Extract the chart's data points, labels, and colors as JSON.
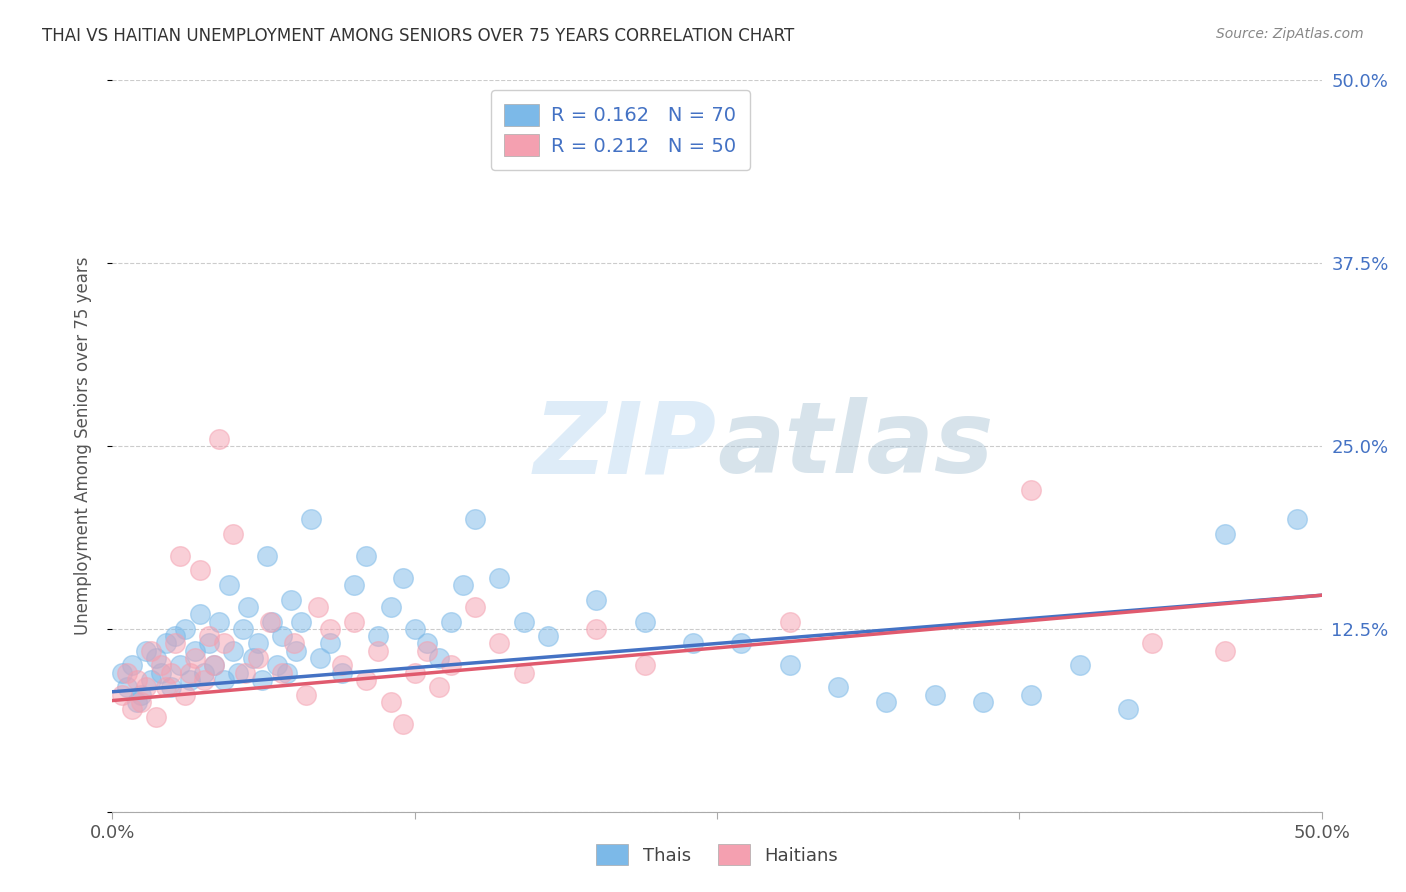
{
  "title": "THAI VS HAITIAN UNEMPLOYMENT AMONG SENIORS OVER 75 YEARS CORRELATION CHART",
  "source": "Source: ZipAtlas.com",
  "xlabel": "",
  "ylabel": "Unemployment Among Seniors over 75 years",
  "xlim": [
    0.0,
    0.5
  ],
  "ylim": [
    0.0,
    0.5
  ],
  "xticks": [
    0.0,
    0.125,
    0.25,
    0.375,
    0.5
  ],
  "yticks": [
    0.0,
    0.125,
    0.25,
    0.375,
    0.5
  ],
  "xtick_labels": [
    "0.0%",
    "",
    "",
    "",
    "50.0%"
  ],
  "ytick_labels": [
    "",
    "12.5%",
    "25.0%",
    "37.5%",
    "50.0%"
  ],
  "thai_color": "#7cb9e8",
  "haitian_color": "#f4a0b0",
  "thai_R": 0.162,
  "thai_N": 70,
  "haitian_R": 0.212,
  "haitian_N": 50,
  "background_color": "#ffffff",
  "grid_color": "#cccccc",
  "watermark_zip": "ZIP",
  "watermark_atlas": "atlas",
  "legend_label_thai": "Thais",
  "legend_label_haitian": "Haitians",
  "legend_R_color": "#4472c4",
  "tick_label_color": "#4472c4",
  "title_color": "#333333",
  "source_color": "#888888",
  "thai_scatter": [
    [
      0.004,
      0.095
    ],
    [
      0.006,
      0.085
    ],
    [
      0.008,
      0.1
    ],
    [
      0.01,
      0.075
    ],
    [
      0.012,
      0.08
    ],
    [
      0.014,
      0.11
    ],
    [
      0.016,
      0.09
    ],
    [
      0.018,
      0.105
    ],
    [
      0.02,
      0.095
    ],
    [
      0.022,
      0.115
    ],
    [
      0.024,
      0.085
    ],
    [
      0.026,
      0.12
    ],
    [
      0.028,
      0.1
    ],
    [
      0.03,
      0.125
    ],
    [
      0.032,
      0.09
    ],
    [
      0.034,
      0.11
    ],
    [
      0.036,
      0.135
    ],
    [
      0.038,
      0.095
    ],
    [
      0.04,
      0.115
    ],
    [
      0.042,
      0.1
    ],
    [
      0.044,
      0.13
    ],
    [
      0.046,
      0.09
    ],
    [
      0.048,
      0.155
    ],
    [
      0.05,
      0.11
    ],
    [
      0.052,
      0.095
    ],
    [
      0.054,
      0.125
    ],
    [
      0.056,
      0.14
    ],
    [
      0.058,
      0.105
    ],
    [
      0.06,
      0.115
    ],
    [
      0.062,
      0.09
    ],
    [
      0.064,
      0.175
    ],
    [
      0.066,
      0.13
    ],
    [
      0.068,
      0.1
    ],
    [
      0.07,
      0.12
    ],
    [
      0.072,
      0.095
    ],
    [
      0.074,
      0.145
    ],
    [
      0.076,
      0.11
    ],
    [
      0.078,
      0.13
    ],
    [
      0.082,
      0.2
    ],
    [
      0.086,
      0.105
    ],
    [
      0.09,
      0.115
    ],
    [
      0.095,
      0.095
    ],
    [
      0.1,
      0.155
    ],
    [
      0.105,
      0.175
    ],
    [
      0.11,
      0.12
    ],
    [
      0.115,
      0.14
    ],
    [
      0.12,
      0.16
    ],
    [
      0.125,
      0.125
    ],
    [
      0.13,
      0.115
    ],
    [
      0.135,
      0.105
    ],
    [
      0.14,
      0.13
    ],
    [
      0.145,
      0.155
    ],
    [
      0.15,
      0.2
    ],
    [
      0.16,
      0.16
    ],
    [
      0.17,
      0.13
    ],
    [
      0.18,
      0.12
    ],
    [
      0.2,
      0.145
    ],
    [
      0.22,
      0.13
    ],
    [
      0.24,
      0.115
    ],
    [
      0.26,
      0.115
    ],
    [
      0.28,
      0.1
    ],
    [
      0.3,
      0.085
    ],
    [
      0.32,
      0.075
    ],
    [
      0.34,
      0.08
    ],
    [
      0.36,
      0.075
    ],
    [
      0.38,
      0.08
    ],
    [
      0.4,
      0.1
    ],
    [
      0.42,
      0.07
    ],
    [
      0.46,
      0.19
    ],
    [
      0.49,
      0.2
    ]
  ],
  "haitian_scatter": [
    [
      0.004,
      0.08
    ],
    [
      0.006,
      0.095
    ],
    [
      0.008,
      0.07
    ],
    [
      0.01,
      0.09
    ],
    [
      0.012,
      0.075
    ],
    [
      0.014,
      0.085
    ],
    [
      0.016,
      0.11
    ],
    [
      0.018,
      0.065
    ],
    [
      0.02,
      0.1
    ],
    [
      0.022,
      0.085
    ],
    [
      0.024,
      0.095
    ],
    [
      0.026,
      0.115
    ],
    [
      0.028,
      0.175
    ],
    [
      0.03,
      0.08
    ],
    [
      0.032,
      0.095
    ],
    [
      0.034,
      0.105
    ],
    [
      0.036,
      0.165
    ],
    [
      0.038,
      0.09
    ],
    [
      0.04,
      0.12
    ],
    [
      0.042,
      0.1
    ],
    [
      0.044,
      0.255
    ],
    [
      0.046,
      0.115
    ],
    [
      0.05,
      0.19
    ],
    [
      0.055,
      0.095
    ],
    [
      0.06,
      0.105
    ],
    [
      0.065,
      0.13
    ],
    [
      0.07,
      0.095
    ],
    [
      0.075,
      0.115
    ],
    [
      0.08,
      0.08
    ],
    [
      0.085,
      0.14
    ],
    [
      0.09,
      0.125
    ],
    [
      0.095,
      0.1
    ],
    [
      0.1,
      0.13
    ],
    [
      0.105,
      0.09
    ],
    [
      0.11,
      0.11
    ],
    [
      0.115,
      0.075
    ],
    [
      0.12,
      0.06
    ],
    [
      0.125,
      0.095
    ],
    [
      0.13,
      0.11
    ],
    [
      0.135,
      0.085
    ],
    [
      0.14,
      0.1
    ],
    [
      0.15,
      0.14
    ],
    [
      0.16,
      0.115
    ],
    [
      0.17,
      0.095
    ],
    [
      0.2,
      0.125
    ],
    [
      0.22,
      0.1
    ],
    [
      0.28,
      0.13
    ],
    [
      0.38,
      0.22
    ],
    [
      0.43,
      0.115
    ],
    [
      0.46,
      0.11
    ]
  ],
  "thai_trendline": [
    [
      0.0,
      0.082
    ],
    [
      0.5,
      0.148
    ]
  ],
  "haitian_trendline": [
    [
      0.0,
      0.076
    ],
    [
      0.5,
      0.148
    ]
  ]
}
